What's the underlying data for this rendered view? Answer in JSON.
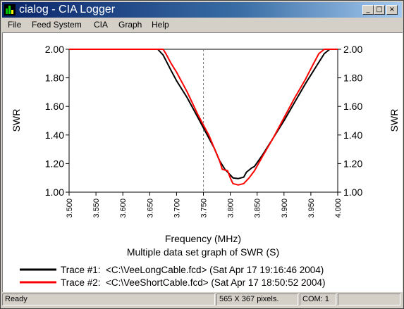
{
  "window": {
    "title": "cialog - CIA Logger",
    "controls": {
      "minimize": "_",
      "maximize": "□",
      "close": "×"
    }
  },
  "menu": [
    {
      "label": "File"
    },
    {
      "label": "Feed System"
    },
    {
      "label": "CIA"
    },
    {
      "label": "Graph"
    },
    {
      "label": "Help"
    }
  ],
  "status": {
    "ready": "Ready",
    "pixels": "565 X 367 pixels.",
    "com": "COM: 1"
  },
  "colors": {
    "trace1": "#000000",
    "trace2": "#ff0000",
    "accent": "#0a246a"
  },
  "chart_data": {
    "type": "line",
    "xlabel": "Frequency (MHz)",
    "caption": "Multiple data set graph of SWR (S)",
    "ylabel_left": "SWR",
    "ylabel_right": "SWR",
    "xlim": [
      3.5,
      4.0
    ],
    "ylim": [
      1.0,
      2.0
    ],
    "x_ticks": [
      "3.500",
      "3.550",
      "3.600",
      "3.650",
      "3.700",
      "3.750",
      "3.800",
      "3.850",
      "3.900",
      "3.950",
      "4.000"
    ],
    "y_ticks": [
      "2.00",
      "1.80",
      "1.60",
      "1.40",
      "1.20",
      "1.00"
    ],
    "marker_x": 3.75,
    "series": [
      {
        "name": "Trace #1:  <C:\\VeeLongCable.fcd> (Sat Apr 17 19:16:46 2004)",
        "color": "#000000",
        "points": [
          [
            3.5,
            2.0
          ],
          [
            3.665,
            2.0
          ],
          [
            3.675,
            1.96
          ],
          [
            3.69,
            1.85
          ],
          [
            3.7,
            1.78
          ],
          [
            3.72,
            1.66
          ],
          [
            3.74,
            1.52
          ],
          [
            3.76,
            1.38
          ],
          [
            3.77,
            1.31
          ],
          [
            3.78,
            1.22
          ],
          [
            3.79,
            1.16
          ],
          [
            3.8,
            1.12
          ],
          [
            3.805,
            1.1
          ],
          [
            3.815,
            1.095
          ],
          [
            3.825,
            1.105
          ],
          [
            3.83,
            1.14
          ],
          [
            3.84,
            1.17
          ],
          [
            3.845,
            1.18
          ],
          [
            3.86,
            1.26
          ],
          [
            3.88,
            1.38
          ],
          [
            3.9,
            1.5
          ],
          [
            3.92,
            1.63
          ],
          [
            3.94,
            1.76
          ],
          [
            3.96,
            1.88
          ],
          [
            3.975,
            1.97
          ],
          [
            3.985,
            2.0
          ],
          [
            4.0,
            2.0
          ]
        ]
      },
      {
        "name": "Trace #2:  <C:\\VeeShortCable.fcd> (Sat Apr 17 18:50:52 2004)",
        "color": "#ff0000",
        "points": [
          [
            3.5,
            2.0
          ],
          [
            3.675,
            2.0
          ],
          [
            3.68,
            1.97
          ],
          [
            3.69,
            1.9
          ],
          [
            3.7,
            1.84
          ],
          [
            3.72,
            1.7
          ],
          [
            3.74,
            1.54
          ],
          [
            3.76,
            1.4
          ],
          [
            3.77,
            1.31
          ],
          [
            3.78,
            1.22
          ],
          [
            3.785,
            1.16
          ],
          [
            3.795,
            1.15
          ],
          [
            3.8,
            1.1
          ],
          [
            3.805,
            1.06
          ],
          [
            3.815,
            1.05
          ],
          [
            3.825,
            1.06
          ],
          [
            3.835,
            1.1
          ],
          [
            3.845,
            1.15
          ],
          [
            3.86,
            1.25
          ],
          [
            3.88,
            1.38
          ],
          [
            3.9,
            1.52
          ],
          [
            3.92,
            1.66
          ],
          [
            3.94,
            1.79
          ],
          [
            3.955,
            1.9
          ],
          [
            3.965,
            1.97
          ],
          [
            3.975,
            2.0
          ],
          [
            4.0,
            2.0
          ]
        ]
      }
    ]
  }
}
